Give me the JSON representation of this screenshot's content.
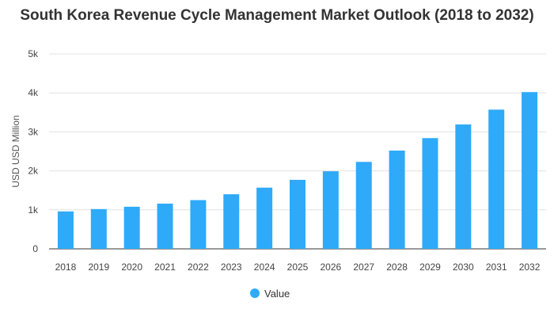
{
  "chart_data": {
    "type": "bar",
    "title": "South Korea Revenue Cycle Management Market Outlook (2018 to 2032)",
    "xlabel": "",
    "ylabel": "USD USD Million",
    "categories": [
      "2018",
      "2019",
      "2020",
      "2021",
      "2022",
      "2023",
      "2024",
      "2025",
      "2026",
      "2027",
      "2028",
      "2029",
      "2030",
      "2031",
      "2032"
    ],
    "series": [
      {
        "name": "Value",
        "color": "#2eaaf8",
        "values": [
          960,
          1020,
          1080,
          1160,
          1250,
          1400,
          1570,
          1770,
          1990,
          2230,
          2520,
          2840,
          3190,
          3570,
          4020
        ]
      }
    ],
    "ylim": [
      0,
      5000
    ],
    "yticks": [
      0,
      1000,
      2000,
      3000,
      4000,
      5000
    ],
    "ytick_labels": [
      "0",
      "1k",
      "2k",
      "3k",
      "4k",
      "5k"
    ],
    "grid": true,
    "legend": "bottom-center"
  }
}
